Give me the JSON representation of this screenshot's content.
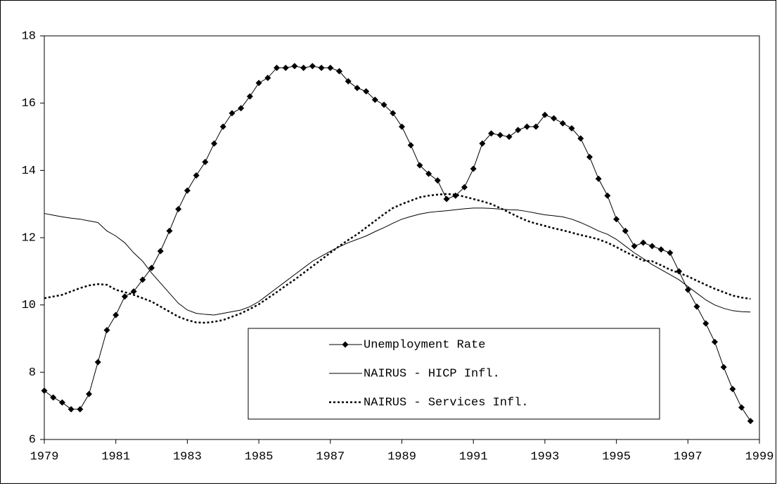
{
  "chart_data": {
    "type": "line",
    "x": [
      1979,
      1979.25,
      1979.5,
      1979.75,
      1980,
      1980.25,
      1980.5,
      1980.75,
      1981,
      1981.25,
      1981.5,
      1981.75,
      1982,
      1982.25,
      1982.5,
      1982.75,
      1983,
      1983.25,
      1983.5,
      1983.75,
      1984,
      1984.25,
      1984.5,
      1984.75,
      1985,
      1985.25,
      1985.5,
      1985.75,
      1986,
      1986.25,
      1986.5,
      1986.75,
      1987,
      1987.25,
      1987.5,
      1987.75,
      1988,
      1988.25,
      1988.5,
      1988.75,
      1989,
      1989.25,
      1989.5,
      1989.75,
      1990,
      1990.25,
      1990.5,
      1990.75,
      1991,
      1991.25,
      1991.5,
      1991.75,
      1992,
      1992.25,
      1992.5,
      1992.75,
      1993,
      1993.25,
      1993.5,
      1993.75,
      1994,
      1994.25,
      1994.5,
      1994.75,
      1995,
      1995.25,
      1995.5,
      1995.75,
      1996,
      1996.25,
      1996.5,
      1996.75,
      1997,
      1997.25,
      1997.5,
      1997.75,
      1998,
      1998.25,
      1998.5,
      1998.75
    ],
    "series": [
      {
        "name": "Unemployment Rate",
        "color": "#000000",
        "marker": "diamond",
        "line_style": "solid",
        "values": [
          7.45,
          7.25,
          7.1,
          6.9,
          6.9,
          7.35,
          8.3,
          9.25,
          9.7,
          10.25,
          10.4,
          10.75,
          11.1,
          11.6,
          12.2,
          12.85,
          13.4,
          13.85,
          14.25,
          14.8,
          15.3,
          15.7,
          15.85,
          16.2,
          16.6,
          16.75,
          17.05,
          17.05,
          17.1,
          17.05,
          17.1,
          17.05,
          17.05,
          16.95,
          16.65,
          16.45,
          16.35,
          16.1,
          15.95,
          15.7,
          15.3,
          14.75,
          14.15,
          13.9,
          13.7,
          13.15,
          13.25,
          13.5,
          14.05,
          14.8,
          15.1,
          15.05,
          15.0,
          15.2,
          15.3,
          15.3,
          15.65,
          15.55,
          15.4,
          15.25,
          14.95,
          14.4,
          13.75,
          13.25,
          12.55,
          12.2,
          11.75,
          11.85,
          11.75,
          11.65,
          11.55,
          11.0,
          10.45,
          9.95,
          9.45,
          8.9,
          8.15,
          7.5,
          6.95,
          6.55
        ]
      },
      {
        "name": "NAIRUS - HICP Infl.",
        "color": "#000000",
        "line_style": "solid",
        "values": [
          12.72,
          12.67,
          12.62,
          12.58,
          12.55,
          12.5,
          12.45,
          12.2,
          12.05,
          11.85,
          11.55,
          11.3,
          10.95,
          10.65,
          10.35,
          10.05,
          9.85,
          9.75,
          9.72,
          9.7,
          9.75,
          9.8,
          9.85,
          9.95,
          10.1,
          10.3,
          10.5,
          10.7,
          10.9,
          11.1,
          11.3,
          11.45,
          11.6,
          11.73,
          11.85,
          11.95,
          12.05,
          12.18,
          12.3,
          12.43,
          12.55,
          12.63,
          12.7,
          12.75,
          12.78,
          12.8,
          12.83,
          12.86,
          12.88,
          12.88,
          12.87,
          12.85,
          12.83,
          12.82,
          12.78,
          12.73,
          12.68,
          12.65,
          12.62,
          12.55,
          12.45,
          12.33,
          12.2,
          12.1,
          11.95,
          11.75,
          11.55,
          11.38,
          11.2,
          11.05,
          10.9,
          10.75,
          10.55,
          10.35,
          10.15,
          10.0,
          9.9,
          9.83,
          9.8,
          9.79
        ]
      },
      {
        "name": "NAIRUS - Services Infl.",
        "color": "#000000",
        "line_style": "dotted",
        "values": [
          10.2,
          10.25,
          10.3,
          10.4,
          10.5,
          10.58,
          10.62,
          10.6,
          10.45,
          10.38,
          10.3,
          10.2,
          10.1,
          9.95,
          9.8,
          9.65,
          9.55,
          9.48,
          9.47,
          9.5,
          9.55,
          9.65,
          9.75,
          9.88,
          10.02,
          10.2,
          10.38,
          10.57,
          10.75,
          10.95,
          11.15,
          11.35,
          11.55,
          11.75,
          11.93,
          12.1,
          12.3,
          12.5,
          12.7,
          12.88,
          13.0,
          13.1,
          13.2,
          13.25,
          13.28,
          13.3,
          13.28,
          13.22,
          13.15,
          13.08,
          13.0,
          12.88,
          12.75,
          12.62,
          12.5,
          12.42,
          12.35,
          12.28,
          12.22,
          12.15,
          12.08,
          12.02,
          11.95,
          11.85,
          11.72,
          11.58,
          11.45,
          11.32,
          11.3,
          11.18,
          11.05,
          10.95,
          10.85,
          10.72,
          10.6,
          10.48,
          10.38,
          10.28,
          10.22,
          10.18
        ]
      }
    ],
    "xlim": [
      1979,
      1999
    ],
    "xticks": [
      1979,
      1981,
      1983,
      1985,
      1987,
      1989,
      1991,
      1993,
      1995,
      1997,
      1999
    ],
    "ylim": [
      6,
      18
    ],
    "yticks": [
      6,
      8,
      10,
      12,
      14,
      16,
      18
    ],
    "grid": false
  }
}
